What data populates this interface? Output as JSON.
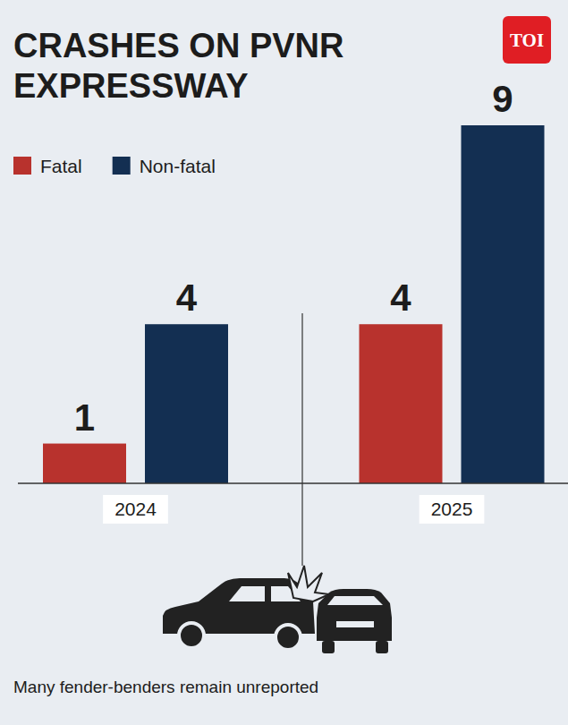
{
  "chart_data": {
    "type": "bar",
    "title": "CRASHES ON PVNR EXPRESSWAY",
    "logo": "TOI",
    "categories": [
      "2024",
      "2025"
    ],
    "series": [
      {
        "name": "Fatal",
        "color": "#b8322d",
        "values": [
          1,
          4
        ]
      },
      {
        "name": "Non-fatal",
        "color": "#132f52",
        "values": [
          4,
          9
        ]
      }
    ],
    "ylim": [
      0,
      9
    ],
    "data_labels": true,
    "tick_labels": "x",
    "legend": "top-left",
    "note": "Many fender-benders remain unreported"
  }
}
